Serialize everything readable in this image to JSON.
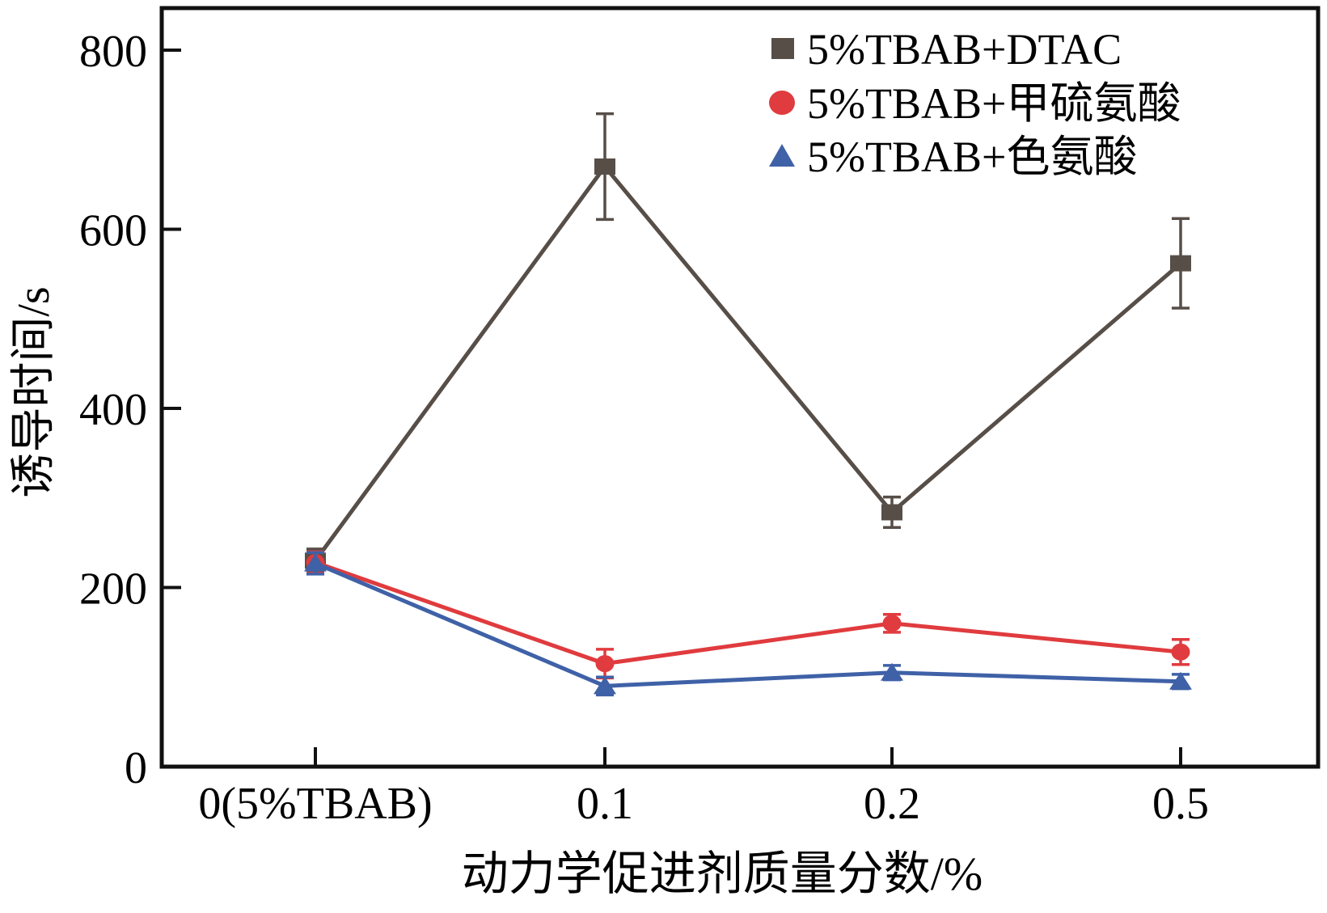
{
  "figure": {
    "background": "#ffffff",
    "axis_color": "#111111"
  },
  "chart_data": {
    "type": "line",
    "title": "",
    "xlabel": "动力学促进剂质量分数/%",
    "ylabel": "诱导时间/s",
    "categories": [
      "0(5%TBAB)",
      "0.1",
      "0.2",
      "0.5"
    ],
    "yticks": [
      0,
      200,
      400,
      600,
      800
    ],
    "ylim": [
      0,
      848
    ],
    "grid": false,
    "legend_position": "top-right",
    "error_bars": true,
    "series": [
      {
        "name": "5%TBAB+DTAC",
        "marker": "square",
        "color": "#574e48",
        "values": [
          230,
          670,
          284,
          562
        ],
        "errors": [
          13,
          59,
          17,
          50
        ]
      },
      {
        "name": "5%TBAB+甲硫氨酸",
        "marker": "circle",
        "color": "#e03b3e",
        "values": [
          228,
          115,
          160,
          128
        ],
        "errors": [
          12,
          16,
          10,
          14
        ]
      },
      {
        "name": "5%TBAB+色氨酸",
        "marker": "triangle",
        "color": "#3f61a7",
        "values": [
          227,
          90,
          105,
          95
        ],
        "errors": [
          12,
          10,
          8,
          8
        ]
      }
    ]
  }
}
